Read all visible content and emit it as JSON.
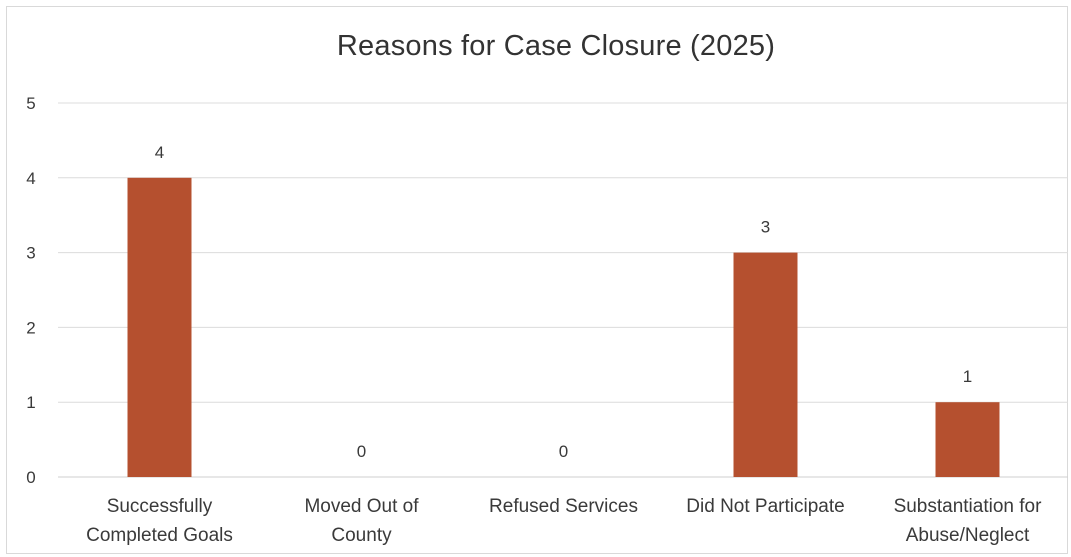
{
  "chart_data": {
    "type": "bar",
    "title": "Reasons for Case Closure (2025)",
    "xlabel": "",
    "ylabel": "",
    "ylim": [
      0,
      5
    ],
    "yticks": [
      0,
      1,
      2,
      3,
      4,
      5
    ],
    "grid": true,
    "legend": "none",
    "bar_color": "#b5502f",
    "categories": [
      [
        "Successfully",
        "Completed Goals"
      ],
      [
        "Moved Out of",
        "County"
      ],
      [
        "Refused Services"
      ],
      [
        "Did Not Participate"
      ],
      [
        "Substantiation for",
        "Abuse/Neglect"
      ]
    ],
    "values": [
      4,
      0,
      0,
      3,
      1
    ]
  }
}
